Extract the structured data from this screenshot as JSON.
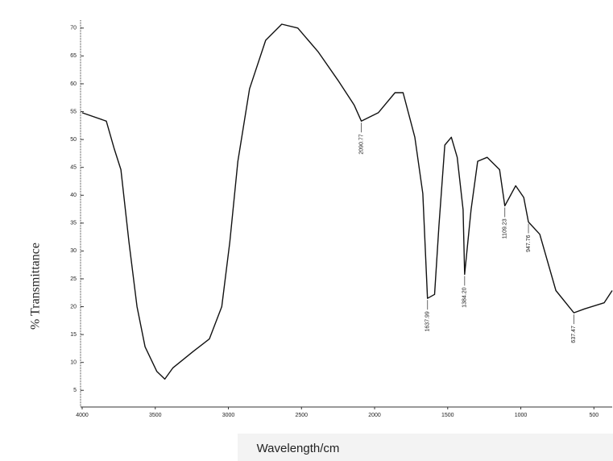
{
  "chart_data": {
    "type": "line",
    "y_label": "% Transmittance",
    "x_label": "Wavelength/cm",
    "xlim": [
      4000,
      375
    ],
    "ylim": [
      2,
      72
    ],
    "xticks": [
      4000,
      3500,
      3000,
      2500,
      2000,
      1500,
      1000,
      500
    ],
    "yticks": [
      5,
      10,
      15,
      20,
      25,
      30,
      35,
      40,
      45,
      50,
      55,
      60,
      65,
      70
    ],
    "series": [
      {
        "color": "#111111",
        "x": [
          4000,
          3835,
          3780,
          3735,
          3680,
          3625,
          3570,
          3490,
          3435,
          3380,
          3240,
          3130,
          3045,
          2990,
          2935,
          2855,
          2745,
          2635,
          2525,
          2385,
          2250,
          2140,
          2090.77,
          1975,
          1860,
          1805,
          1725,
          1670,
          1637.99,
          1590,
          1560,
          1520,
          1475,
          1435,
          1395,
          1384.2,
          1340,
          1295,
          1230,
          1145,
          1109.23,
          1035,
          980,
          947.76,
          870,
          760,
          637.47,
          565,
          430,
          375
        ],
        "values": [
          54.8,
          53.3,
          48.3,
          44.6,
          31.6,
          20,
          12.8,
          8.4,
          7,
          9,
          12,
          14.2,
          20,
          31.6,
          46.1,
          59.1,
          67.8,
          70.7,
          70,
          65.7,
          60.6,
          56.2,
          53.3,
          54.8,
          58.4,
          58.4,
          50.4,
          40.3,
          21.5,
          22.2,
          34.5,
          49,
          50.4,
          46.8,
          37.4,
          25.8,
          37.4,
          46.1,
          46.8,
          44.6,
          38.1,
          41.7,
          39.6,
          35.2,
          33,
          22.9,
          18.9,
          19.6,
          20.7,
          22.9
        ]
      }
    ],
    "annotations": [
      {
        "label": "2090.77",
        "x": 2090.77,
        "y": 53.3
      },
      {
        "label": "1637.99",
        "x": 1637.99,
        "y": 21.5
      },
      {
        "label": "1384.20",
        "x": 1384.2,
        "y": 25.8
      },
      {
        "label": "1109.23",
        "x": 1109.23,
        "y": 38.1
      },
      {
        "label": "947.76",
        "x": 947.76,
        "y": 35.2
      },
      {
        "label": "637.47",
        "x": 637.47,
        "y": 18.9
      }
    ]
  }
}
